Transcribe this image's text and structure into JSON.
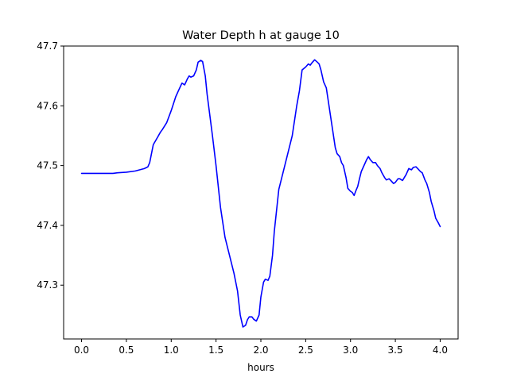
{
  "chart_data": {
    "type": "line",
    "title": "Water Depth h at gauge 10",
    "xlabel": "hours",
    "ylabel": "",
    "xlim": [
      -0.2,
      4.2
    ],
    "ylim": [
      47.21,
      47.7
    ],
    "xticks": [
      0.0,
      0.5,
      1.0,
      1.5,
      2.0,
      2.5,
      3.0,
      3.5,
      4.0
    ],
    "xtick_labels": [
      "0.0",
      "0.5",
      "1.0",
      "1.5",
      "2.0",
      "2.5",
      "3.0",
      "3.5",
      "4.0"
    ],
    "yticks": [
      47.3,
      47.4,
      47.5,
      47.6,
      47.7
    ],
    "ytick_labels": [
      "47.3",
      "47.4",
      "47.5",
      "47.6",
      "47.7"
    ],
    "grid": false,
    "legend": "none",
    "series": [
      {
        "color": "#0000ff",
        "x": [
          0.0,
          0.1,
          0.2,
          0.3,
          0.35,
          0.4,
          0.5,
          0.6,
          0.65,
          0.7,
          0.74,
          0.76,
          0.78,
          0.8,
          0.85,
          0.88,
          0.9,
          0.95,
          1.0,
          1.05,
          1.08,
          1.12,
          1.15,
          1.18,
          1.2,
          1.22,
          1.25,
          1.28,
          1.3,
          1.33,
          1.35,
          1.38,
          1.4,
          1.43,
          1.46,
          1.5,
          1.55,
          1.6,
          1.65,
          1.7,
          1.74,
          1.77,
          1.8,
          1.83,
          1.85,
          1.87,
          1.9,
          1.92,
          1.95,
          1.98,
          2.0,
          2.03,
          2.05,
          2.08,
          2.1,
          2.13,
          2.15,
          2.2,
          2.25,
          2.3,
          2.35,
          2.4,
          2.43,
          2.46,
          2.5,
          2.53,
          2.55,
          2.57,
          2.6,
          2.63,
          2.65,
          2.67,
          2.7,
          2.73,
          2.75,
          2.8,
          2.83,
          2.85,
          2.88,
          2.9,
          2.92,
          2.95,
          2.97,
          3.0,
          3.02,
          3.04,
          3.06,
          3.08,
          3.1,
          3.12,
          3.15,
          3.18,
          3.2,
          3.22,
          3.25,
          3.28,
          3.3,
          3.33,
          3.35,
          3.38,
          3.4,
          3.43,
          3.45,
          3.48,
          3.5,
          3.53,
          3.55,
          3.58,
          3.6,
          3.62,
          3.65,
          3.68,
          3.7,
          3.73,
          3.75,
          3.78,
          3.8,
          3.83,
          3.85,
          3.88,
          3.9,
          3.93,
          3.95,
          3.98,
          4.0
        ],
        "y": [
          47.487,
          47.487,
          47.487,
          47.487,
          47.487,
          47.488,
          47.489,
          47.491,
          47.493,
          47.495,
          47.498,
          47.505,
          47.52,
          47.535,
          47.548,
          47.556,
          47.56,
          47.572,
          47.592,
          47.615,
          47.625,
          47.638,
          47.635,
          47.645,
          47.65,
          47.648,
          47.65,
          47.66,
          47.673,
          47.676,
          47.674,
          47.65,
          47.62,
          47.585,
          47.55,
          47.5,
          47.43,
          47.38,
          47.35,
          47.32,
          47.29,
          47.25,
          47.23,
          47.233,
          47.242,
          47.247,
          47.247,
          47.243,
          47.24,
          47.25,
          47.28,
          47.305,
          47.31,
          47.308,
          47.315,
          47.35,
          47.39,
          47.46,
          47.49,
          47.52,
          47.55,
          47.6,
          47.625,
          47.66,
          47.665,
          47.67,
          47.668,
          47.672,
          47.677,
          47.673,
          47.67,
          47.66,
          47.64,
          47.63,
          47.61,
          47.56,
          47.53,
          47.52,
          47.515,
          47.505,
          47.5,
          47.48,
          47.462,
          47.457,
          47.455,
          47.45,
          47.458,
          47.465,
          47.478,
          47.49,
          47.5,
          47.51,
          47.515,
          47.51,
          47.505,
          47.505,
          47.5,
          47.495,
          47.488,
          47.48,
          47.476,
          47.478,
          47.475,
          47.47,
          47.472,
          47.478,
          47.478,
          47.475,
          47.48,
          47.485,
          47.495,
          47.493,
          47.497,
          47.498,
          47.495,
          47.49,
          47.488,
          47.476,
          47.47,
          47.455,
          47.44,
          47.425,
          47.412,
          47.404,
          47.398
        ]
      }
    ]
  }
}
